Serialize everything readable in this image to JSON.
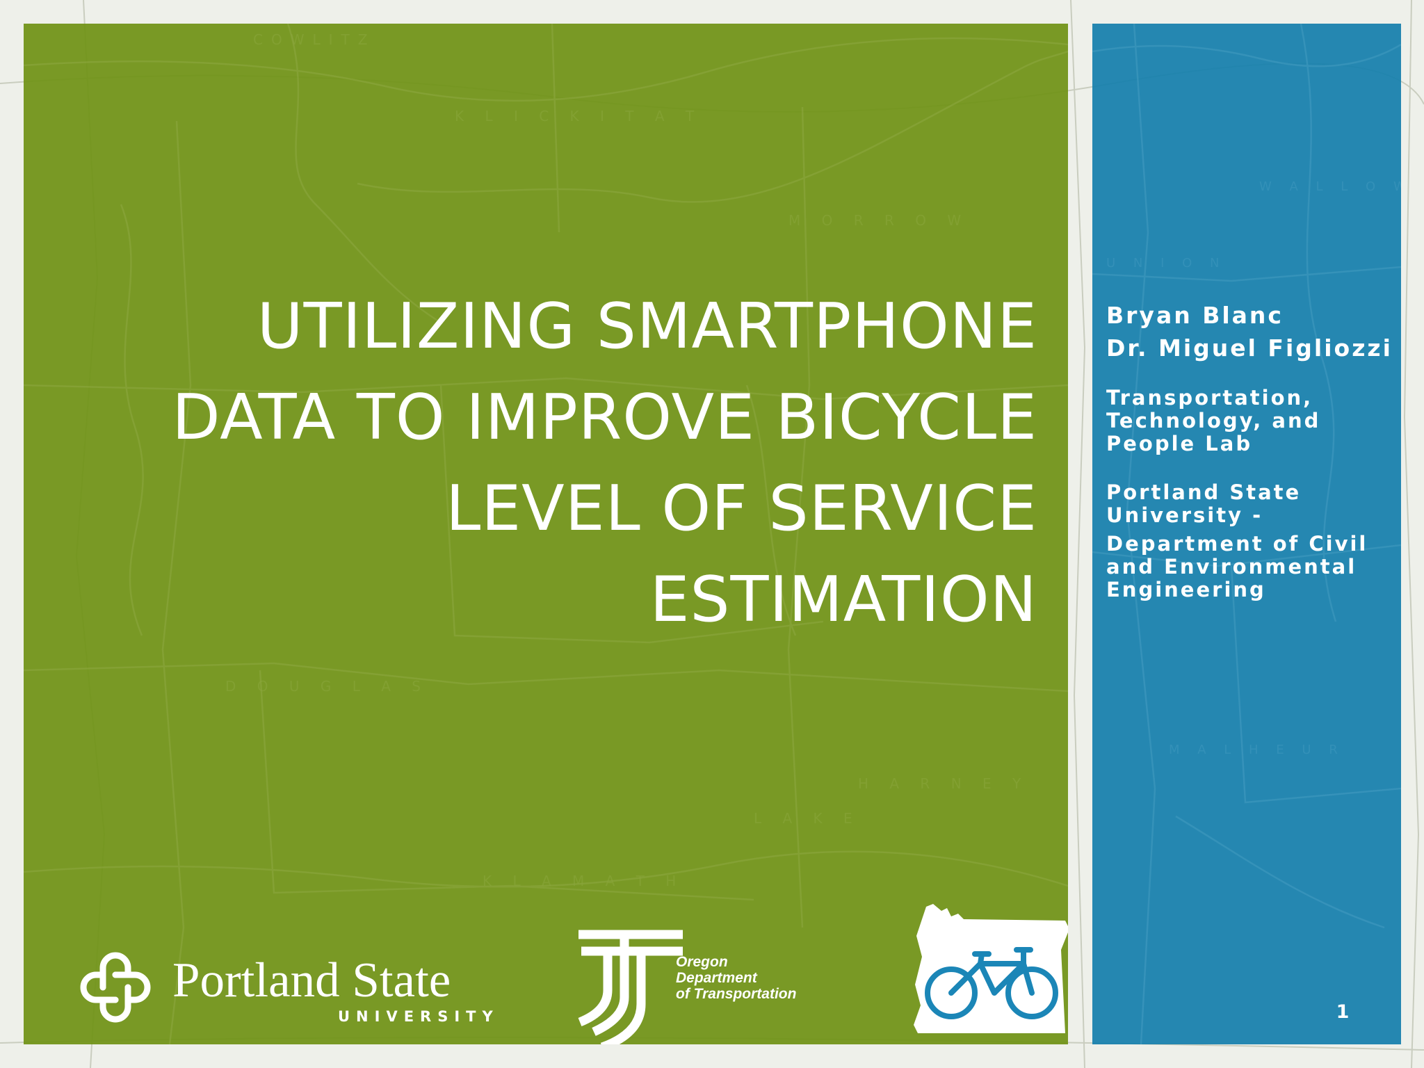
{
  "title_lines": [
    "UTILIZING SMARTPHONE",
    "DATA TO IMPROVE BICYCLE",
    "LEVEL OF SERVICE",
    "ESTIMATION"
  ],
  "authors": [
    "Bryan Blanc",
    "Dr. Miguel Figliozzi"
  ],
  "lab_lines": [
    "Transportation,",
    "Technology, and",
    "People Lab"
  ],
  "university_lines": [
    "Portland State",
    "University -"
  ],
  "department_lines": [
    "Department of Civil",
    "and Environmental",
    "Engineering"
  ],
  "page_number": "1",
  "logos": {
    "psu": {
      "name": "Portland State",
      "sub": "UNIVERSITY",
      "icon": "psu-knot-icon"
    },
    "odot": {
      "lines": [
        "Oregon",
        "Department",
        "of Transportation"
      ],
      "icon": "odot-t-icon"
    },
    "bike": {
      "icon": "oregon-bicycle-icon"
    }
  },
  "colors": {
    "green_panel": "#709216",
    "blue_panel": "#167fac",
    "text": "#ffffff"
  }
}
